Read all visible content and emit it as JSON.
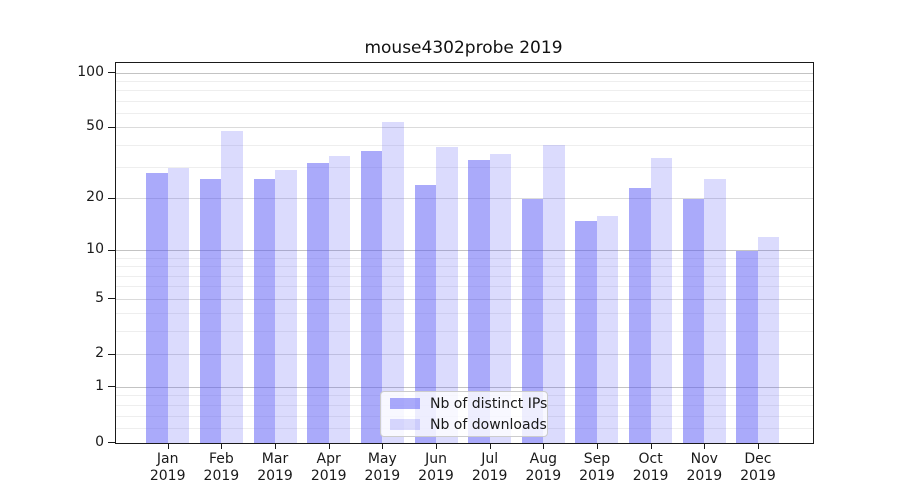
{
  "title": "mouse4302probe 2019",
  "chart_data": {
    "type": "bar",
    "title": "mouse4302probe 2019",
    "categories": [
      "Jan",
      "Feb",
      "Mar",
      "Apr",
      "May",
      "Jun",
      "Jul",
      "Aug",
      "Sep",
      "Oct",
      "Nov",
      "Dec"
    ],
    "category_year": "2019",
    "series": [
      {
        "name": "Nb of distinct IPs",
        "color": "rgba(85,85,245,0.5)",
        "values": [
          28,
          26,
          26,
          32,
          37,
          24,
          33,
          20,
          15,
          23,
          20,
          10
        ]
      },
      {
        "name": "Nb of downloads",
        "color": "rgba(85,85,245,0.21)",
        "values": [
          30,
          48,
          29,
          35,
          54,
          39,
          36,
          40,
          16,
          34,
          26,
          12
        ]
      }
    ],
    "xlabel": "",
    "ylabel": "",
    "y_scale": "symlog",
    "y_ticks": [
      0,
      1,
      2,
      5,
      10,
      20,
      50,
      100
    ],
    "ylim": [
      0,
      113
    ],
    "grid": {
      "major_levels": [
        1,
        10,
        100
      ],
      "mid_levels": [
        2,
        5,
        20,
        50
      ],
      "minor_levels": [
        0.2,
        0.4,
        0.6,
        0.8,
        3,
        4,
        6,
        7,
        8,
        9,
        30,
        40,
        60,
        70,
        80,
        90
      ]
    },
    "legend_position": "lower center",
    "grid_on": true
  },
  "colors": {
    "bar_ips": "rgba(85,85,245,0.5)",
    "bar_downloads": "rgba(85,85,245,0.21)",
    "grid_major": "#c3c3c3",
    "grid_mid": "#dbdbdb",
    "grid_minor": "#eeeeee",
    "spine": "#1a1a1a",
    "text": "#1a1a1a"
  },
  "legend": {
    "items": [
      {
        "label": "Nb of distinct IPs"
      },
      {
        "label": "Nb of downloads"
      }
    ]
  }
}
